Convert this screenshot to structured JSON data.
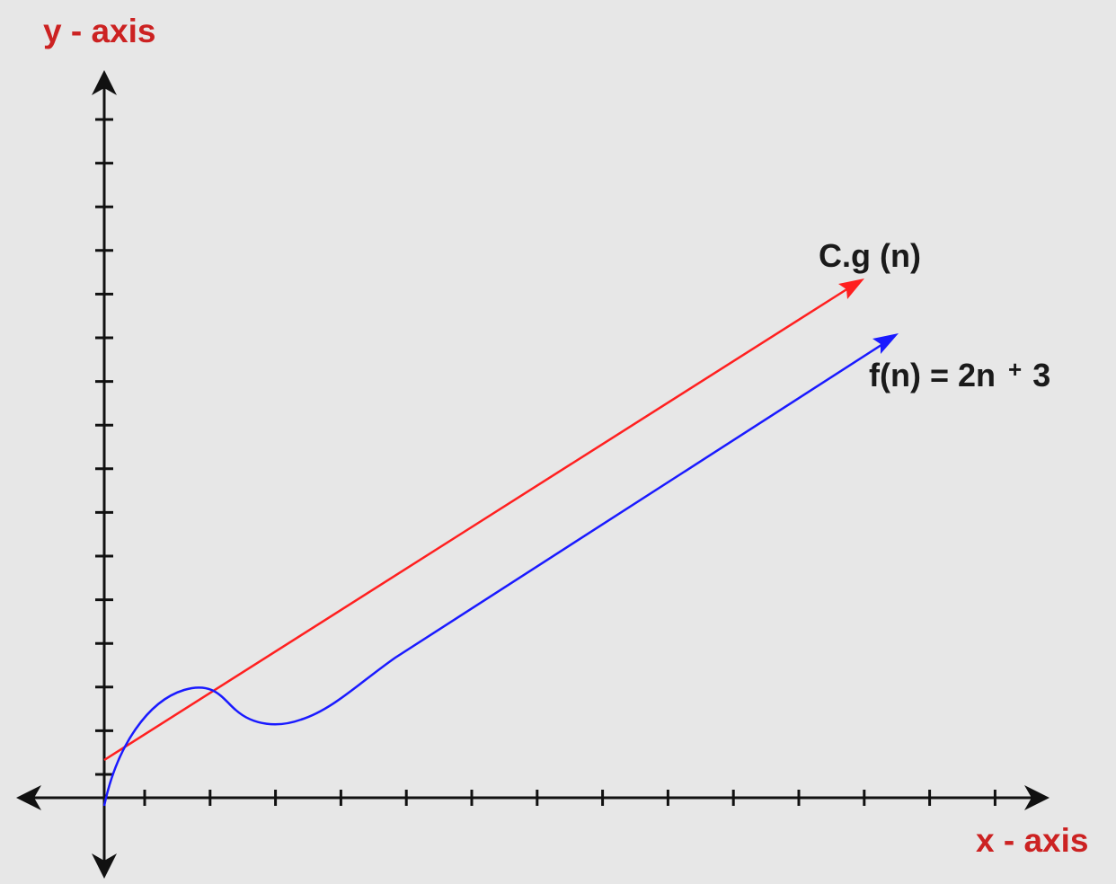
{
  "diagram": {
    "y_axis_label": "y - axis",
    "x_axis_label": "x - axis",
    "upper_curve_label": "C.g (n)",
    "lower_curve_label_main": "f(n) = 2n",
    "lower_curve_label_plus": "+",
    "lower_curve_label_tail": "3"
  },
  "colors": {
    "background": "#e7e7e7",
    "axis": "#111111",
    "axis_label": "#cc2222",
    "upper_curve": "#ff2020",
    "lower_curve": "#1a1aff",
    "curve_label": "#1a1a1a"
  }
}
